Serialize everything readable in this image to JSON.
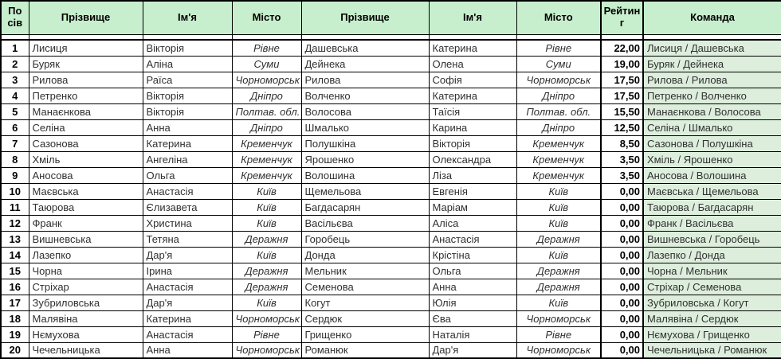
{
  "table": {
    "columns": [
      {
        "key": "seed",
        "label": "По сів"
      },
      {
        "key": "p1_surname",
        "label": "Прізвище"
      },
      {
        "key": "p1_name",
        "label": "Ім'я"
      },
      {
        "key": "p1_city",
        "label": "Місто"
      },
      {
        "key": "p2_surname",
        "label": "Прізвище"
      },
      {
        "key": "p2_name",
        "label": "Ім'я"
      },
      {
        "key": "p2_city",
        "label": "Місто"
      },
      {
        "key": "rating",
        "label": "Рейтинг"
      },
      {
        "key": "team",
        "label": "Команда"
      }
    ],
    "rows": [
      {
        "seed": "1",
        "p1_surname": "Лисиця",
        "p1_name": "Вікторія",
        "p1_city": "Рівне",
        "p2_surname": "Дашевська",
        "p2_name": "Катерина",
        "p2_city": "Рівне",
        "rating": "22,00",
        "team": "Лисиця / Дашевська"
      },
      {
        "seed": "2",
        "p1_surname": "Буряк",
        "p1_name": "Аліна",
        "p1_city": "Суми",
        "p2_surname": "Дейнека",
        "p2_name": "Олена",
        "p2_city": "Суми",
        "rating": "19,00",
        "team": "Буряк / Дейнека"
      },
      {
        "seed": "3",
        "p1_surname": "Рилова",
        "p1_name": "Раїса",
        "p1_city": "Чорноморськ",
        "p2_surname": "Рилова",
        "p2_name": "Софія",
        "p2_city": "Чорноморськ",
        "rating": "17,50",
        "team": "Рилова / Рилова"
      },
      {
        "seed": "4",
        "p1_surname": "Петренко",
        "p1_name": "Вікторія",
        "p1_city": "Дніпро",
        "p2_surname": "Волченко",
        "p2_name": "Катерина",
        "p2_city": "Дніпро",
        "rating": "17,50",
        "team": "Петренко / Волченко"
      },
      {
        "seed": "5",
        "p1_surname": "Манаєнкова",
        "p1_name": "Вікторія",
        "p1_city": "Полтав. обл.",
        "p2_surname": "Волосова",
        "p2_name": "Таїсія",
        "p2_city": "Полтав. обл.",
        "rating": "15,50",
        "team": "Манаєнкова / Волосова"
      },
      {
        "seed": "6",
        "p1_surname": "Селіна",
        "p1_name": "Анна",
        "p1_city": "Дніпро",
        "p2_surname": "Шмалько",
        "p2_name": "Карина",
        "p2_city": "Дніпро",
        "rating": "12,50",
        "team": "Селіна / Шмалько"
      },
      {
        "seed": "7",
        "p1_surname": "Сазонова",
        "p1_name": "Катерина",
        "p1_city": "Кременчук",
        "p2_surname": "Полушкіна",
        "p2_name": "Вікторія",
        "p2_city": "Кременчук",
        "rating": "8,50",
        "team": "Сазонова / Полушкіна"
      },
      {
        "seed": "8",
        "p1_surname": "Хміль",
        "p1_name": "Ангеліна",
        "p1_city": "Кременчук",
        "p2_surname": "Ярошенко",
        "p2_name": "Олександра",
        "p2_city": "Кременчук",
        "rating": "3,50",
        "team": "Хміль / Ярошенко"
      },
      {
        "seed": "9",
        "p1_surname": "Аносова",
        "p1_name": "Ольга",
        "p1_city": "Кременчук",
        "p2_surname": "Волошина",
        "p2_name": "Ліза",
        "p2_city": "Кременчук",
        "rating": "3,50",
        "team": "Аносова / Волошина"
      },
      {
        "seed": "10",
        "p1_surname": "Маєвська",
        "p1_name": "Анастасія",
        "p1_city": "Київ",
        "p2_surname": "Щемельова",
        "p2_name": "Евгенія",
        "p2_city": "Київ",
        "rating": "0,00",
        "team": "Маєвська / Щемельова"
      },
      {
        "seed": "11",
        "p1_surname": "Таюрова",
        "p1_name": "Єлизавета",
        "p1_city": "Київ",
        "p2_surname": "Багдасарян",
        "p2_name": "Маріам",
        "p2_city": "Київ",
        "rating": "0,00",
        "team": "Таюрова / Багдасарян"
      },
      {
        "seed": "12",
        "p1_surname": "Франк",
        "p1_name": "Христина",
        "p1_city": "Київ",
        "p2_surname": "Васільєва",
        "p2_name": "Аліса",
        "p2_city": "Київ",
        "rating": "0,00",
        "team": "Франк / Васільєва"
      },
      {
        "seed": "13",
        "p1_surname": "Вишневська",
        "p1_name": "Тетяна",
        "p1_city": "Деражня",
        "p2_surname": "Горобець",
        "p2_name": "Анастасія",
        "p2_city": "Деражня",
        "rating": "0,00",
        "team": "Вишневська / Горобець"
      },
      {
        "seed": "14",
        "p1_surname": "Лазепко",
        "p1_name": "Дар'я",
        "p1_city": "Київ",
        "p2_surname": "Донда",
        "p2_name": "Крістіна",
        "p2_city": "Київ",
        "rating": "0,00",
        "team": "Лазепко / Донда"
      },
      {
        "seed": "15",
        "p1_surname": "Чорна",
        "p1_name": "Ірина",
        "p1_city": "Деражня",
        "p2_surname": "Мельник",
        "p2_name": "Ольга",
        "p2_city": "Деражня",
        "rating": "0,00",
        "team": "Чорна / Мельник"
      },
      {
        "seed": "16",
        "p1_surname": "Стріхар",
        "p1_name": "Анастасія",
        "p1_city": "Деражня",
        "p2_surname": "Семенова",
        "p2_name": "Анна",
        "p2_city": "Деражня",
        "rating": "0,00",
        "team": "Стріхар / Семенова"
      },
      {
        "seed": "17",
        "p1_surname": "Зубриловська",
        "p1_name": "Дар'я",
        "p1_city": "Київ",
        "p2_surname": "Когут",
        "p2_name": "Юлія",
        "p2_city": "Київ",
        "rating": "0,00",
        "team": "Зубриловська / Когут"
      },
      {
        "seed": "18",
        "p1_surname": "Малявіна",
        "p1_name": "Катерина",
        "p1_city": "Чорноморськ",
        "p2_surname": "Сердюк",
        "p2_name": "Єва",
        "p2_city": "Чорноморськ",
        "rating": "0,00",
        "team": "Малявіна / Сердюк"
      },
      {
        "seed": "19",
        "p1_surname": "Нємухова",
        "p1_name": "Анастасія",
        "p1_city": "Рівне",
        "p2_surname": "Грищенко",
        "p2_name": "Наталія",
        "p2_city": "Рівне",
        "rating": "0,00",
        "team": "Нємухова / Грищенко"
      },
      {
        "seed": "20",
        "p1_surname": "Чечельницька",
        "p1_name": "Анна",
        "p1_city": "Чорноморськ",
        "p2_surname": "Романюк",
        "p2_name": "Дар'я",
        "p2_city": "Чорноморськ",
        "rating": "0,00",
        "team": "Чечельницька / Романюк"
      }
    ]
  },
  "colors": {
    "header_bg": "#c7efcd",
    "team_column_bg": "#ddeedd",
    "grid": "#000000"
  }
}
